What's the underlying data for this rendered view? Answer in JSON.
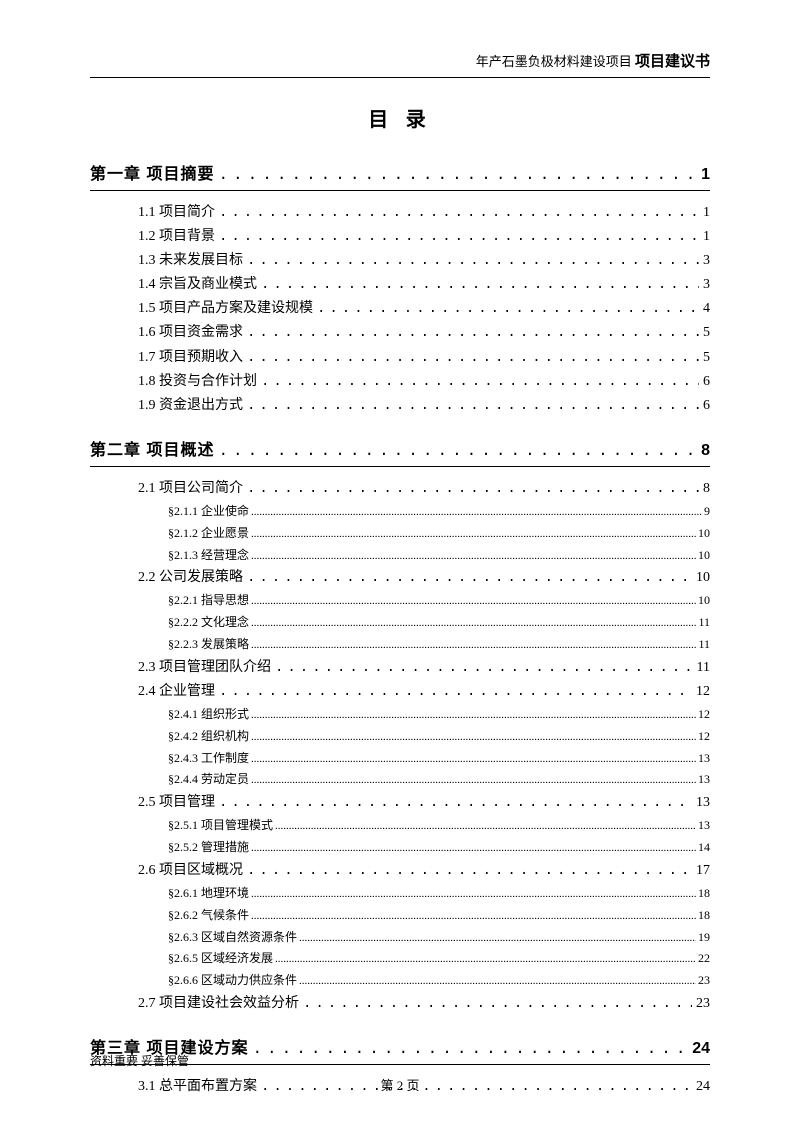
{
  "header": {
    "small": "年产石墨负极材料建设项目",
    "bold": "项目建议书"
  },
  "title": "目 录",
  "toc": [
    {
      "chapter_label": "第一章 项目摘要",
      "chapter_page": "1",
      "sections": [
        {
          "label": "1.1 项目简介",
          "page": "1",
          "subs": []
        },
        {
          "label": "1.2 项目背景",
          "page": "1",
          "subs": []
        },
        {
          "label": "1.3 未来发展目标",
          "page": "3",
          "subs": []
        },
        {
          "label": "1.4 宗旨及商业模式",
          "page": "3",
          "subs": []
        },
        {
          "label": "1.5 项目产品方案及建设规模",
          "page": "4",
          "subs": []
        },
        {
          "label": "1.6 项目资金需求",
          "page": "5",
          "subs": []
        },
        {
          "label": "1.7 项目预期收入",
          "page": "5",
          "subs": []
        },
        {
          "label": "1.8 投资与合作计划",
          "page": "6",
          "subs": []
        },
        {
          "label": "1.9 资金退出方式",
          "page": "6",
          "subs": []
        }
      ]
    },
    {
      "chapter_label": "第二章 项目概述",
      "chapter_page": "8",
      "sections": [
        {
          "label": "2.1 项目公司简介",
          "page": "8",
          "subs": [
            {
              "label": "§2.1.1 企业使命",
              "page": "9"
            },
            {
              "label": "§2.1.2 企业愿景",
              "page": "10"
            },
            {
              "label": "§2.1.3 经营理念",
              "page": "10"
            }
          ]
        },
        {
          "label": "2.2 公司发展策略",
          "page": "10",
          "subs": [
            {
              "label": "§2.2.1 指导思想",
              "page": "10"
            },
            {
              "label": "§2.2.2 文化理念",
              "page": "11"
            },
            {
              "label": "§2.2.3 发展策略",
              "page": "11"
            }
          ]
        },
        {
          "label": "2.3 项目管理团队介绍",
          "page": "11",
          "subs": []
        },
        {
          "label": "2.4 企业管理",
          "page": "12",
          "subs": [
            {
              "label": "§2.4.1 组织形式",
              "page": "12"
            },
            {
              "label": "§2.4.2 组织机构",
              "page": "12"
            },
            {
              "label": "§2.4.3 工作制度",
              "page": "13"
            },
            {
              "label": "§2.4.4 劳动定员",
              "page": "13"
            }
          ]
        },
        {
          "label": "2.5 项目管理",
          "page": "13",
          "subs": [
            {
              "label": "§2.5.1 项目管理模式",
              "page": "13"
            },
            {
              "label": "§2.5.2 管理措施",
              "page": "14"
            }
          ]
        },
        {
          "label": "2.6 项目区域概况",
          "page": "17",
          "subs": [
            {
              "label": "§2.6.1 地理环境",
              "page": "18"
            },
            {
              "label": "§2.6.2 气候条件",
              "page": "18"
            },
            {
              "label": "§2.6.3 区域自然资源条件",
              "page": "19"
            },
            {
              "label": "§2.6.5 区域经济发展",
              "page": "22"
            },
            {
              "label": "§2.6.6 区域动力供应条件",
              "page": "23"
            }
          ]
        },
        {
          "label": "2.7 项目建设社会效益分析",
          "page": "23",
          "subs": []
        }
      ]
    },
    {
      "chapter_label": "第三章 项目建设方案",
      "chapter_page": "24",
      "sections": [
        {
          "label": "3.1 总平面布置方案",
          "page": "24",
          "subs": []
        }
      ]
    }
  ],
  "footer": {
    "note": "资料重要  妥善保管",
    "page_label": "第 2 页"
  },
  "colors": {
    "text": "#000000",
    "bg": "#ffffff",
    "line": "#000000"
  }
}
